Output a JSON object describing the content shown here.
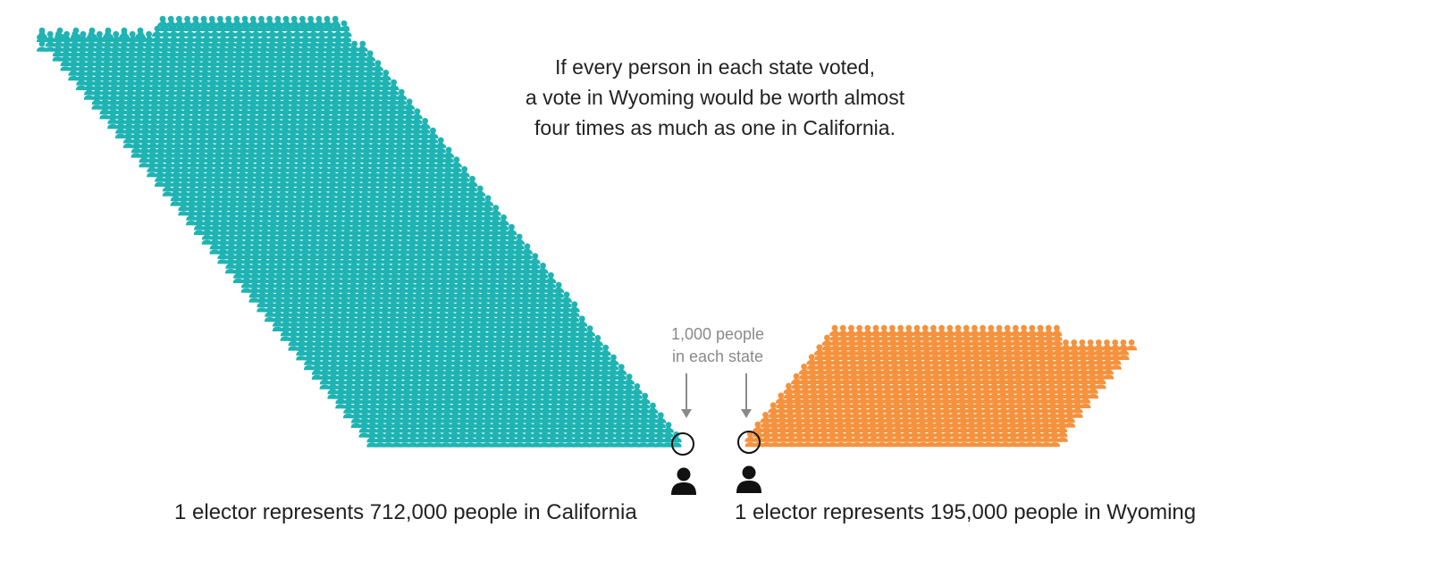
{
  "headline": {
    "line1": "If every person in each state voted,",
    "line2": "a vote in Wyoming would be worth almost",
    "line3": "four times as much as one in California."
  },
  "annotation": {
    "line1": "1,000 people",
    "line2": "in each state"
  },
  "california": {
    "caption": "1 elector represents 712,000 people in California",
    "people_per_elector": 712000,
    "people_per_icon": 1000,
    "color": "#1fb3b3"
  },
  "wyoming": {
    "caption": "1 elector represents 195,000 people in Wyoming",
    "people_per_elector": 195000,
    "people_per_icon": 1000,
    "color": "#f5923e"
  },
  "icons": {
    "person": "person-icon",
    "elector": "elector-icon",
    "highlight": "circle-highlight",
    "arrow": "down-arrow-icon"
  },
  "colors": {
    "text": "#222222",
    "note": "#8a8a8a",
    "elector": "#111111"
  }
}
